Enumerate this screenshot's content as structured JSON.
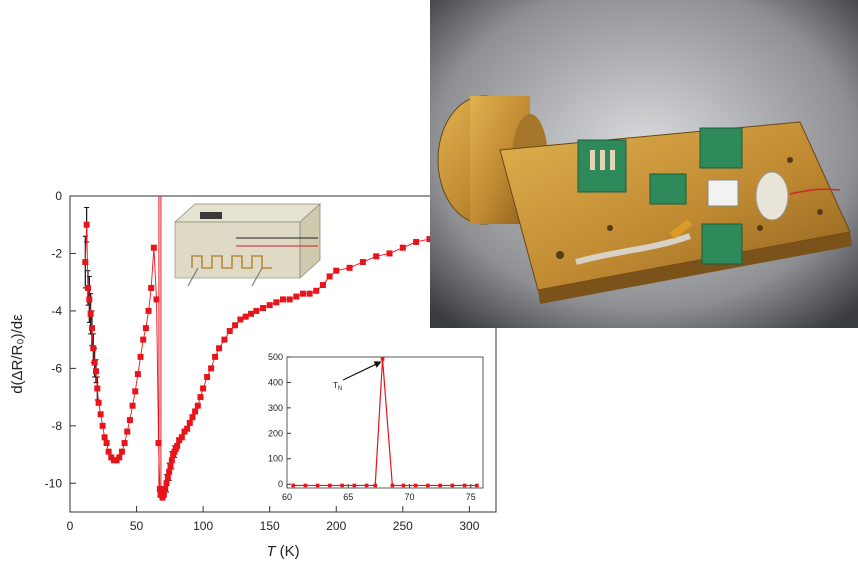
{
  "photo": {
    "description_icon": "experimental-sample-holder-photo"
  },
  "colors": {
    "series": "#e8141c",
    "errorbar": "#111111",
    "brass": "#c8922e",
    "pcb": "#2e8a5a"
  },
  "chart_data": [
    {
      "type": "scatter",
      "xlabel_italic": "T",
      "xlabel_unit": "(K)",
      "ylabel": "d(ΔR/R₀)/dε",
      "xlim": [
        0,
        320
      ],
      "ylim": [
        -11,
        0
      ],
      "xticks": [
        "0",
        "50",
        "100",
        "150",
        "200",
        "250",
        "300"
      ],
      "yticks": [
        "0",
        "-2",
        "-4",
        "-6",
        "-8",
        "-10"
      ],
      "xtick_values": [
        0,
        50,
        100,
        150,
        200,
        250,
        300
      ],
      "ytick_values": [
        0,
        -2,
        -4,
        -6,
        -8,
        -10
      ],
      "grid": false,
      "series": [
        {
          "x": [
            11.5,
            12.5,
            13.5,
            14.5,
            15.5,
            16.5,
            17.5,
            18.5,
            19.5,
            20.5,
            21.5,
            23,
            24.5,
            26,
            27.5,
            29,
            31,
            33,
            35,
            37,
            39,
            41,
            43,
            45,
            47,
            49,
            51,
            53,
            55,
            57,
            59,
            61,
            63,
            65,
            66.5,
            67.5,
            68,
            68.5,
            69.5,
            70.5,
            71.5,
            72.5,
            73.5,
            74.5,
            75.5,
            76.5,
            77.5,
            78.5,
            79.5,
            80.5,
            82,
            84,
            86,
            88,
            90,
            92,
            94,
            96,
            98,
            100,
            103,
            106,
            109,
            112,
            116,
            120,
            124,
            128,
            132,
            136,
            140,
            145,
            150,
            155,
            160,
            165,
            170,
            175,
            180,
            185,
            190,
            195,
            200,
            210,
            220,
            230,
            240,
            250,
            260,
            270,
            280,
            290,
            300,
            310,
            318
          ],
          "y": [
            -2.3,
            -1.0,
            -3.2,
            -3.6,
            -4.1,
            -4.6,
            -5.3,
            -5.8,
            -6.1,
            -6.7,
            -7.2,
            -7.6,
            -8.0,
            -8.4,
            -8.6,
            -8.9,
            -9.1,
            -9.2,
            -9.2,
            -9.1,
            -8.9,
            -8.6,
            -8.2,
            -7.8,
            -7.3,
            -6.8,
            -6.2,
            -5.6,
            -5.0,
            -4.6,
            -4.0,
            -3.2,
            -1.8,
            -3.6,
            -8.6,
            -10.2,
            -10.4,
            -10.4,
            -10.5,
            -10.4,
            -10.2,
            -10.0,
            -9.8,
            -9.6,
            -9.4,
            -9.2,
            -9.0,
            -8.9,
            -8.8,
            -8.7,
            -8.5,
            -8.4,
            -8.2,
            -8.1,
            -7.9,
            -7.7,
            -7.5,
            -7.3,
            -7.0,
            -6.7,
            -6.3,
            -6.0,
            -5.6,
            -5.3,
            -5.0,
            -4.7,
            -4.5,
            -4.3,
            -4.2,
            -4.1,
            -4.0,
            -3.9,
            -3.8,
            -3.7,
            -3.6,
            -3.6,
            -3.5,
            -3.4,
            -3.4,
            -3.3,
            -3.1,
            -2.8,
            -2.6,
            -2.5,
            -2.3,
            -2.1,
            -2.0,
            -1.8,
            -1.6,
            -1.5,
            -1.4,
            -1.2,
            -1.1,
            -0.8,
            -0.6
          ],
          "sharp_peak": {
            "x": 66.8,
            "y_top": 0,
            "y_bottom": -10.4
          }
        }
      ],
      "errorbars": [
        {
          "x": 11.5,
          "y": -2.3,
          "err": 0.9
        },
        {
          "x": 12.5,
          "y": -1.0,
          "err": 0.6
        },
        {
          "x": 13.5,
          "y": -3.2,
          "err": 0.6
        },
        {
          "x": 14.5,
          "y": -3.6,
          "err": 0.8
        },
        {
          "x": 15.5,
          "y": -4.1,
          "err": 0.7
        },
        {
          "x": 16.5,
          "y": -4.6,
          "err": 0.6
        },
        {
          "x": 17.5,
          "y": -5.3,
          "err": 0.5
        },
        {
          "x": 18.5,
          "y": -5.8,
          "err": 0.5
        },
        {
          "x": 19.5,
          "y": -6.1,
          "err": 0.4
        },
        {
          "x": 20.5,
          "y": -6.7,
          "err": 0.4
        },
        {
          "x": 72.5,
          "y": -10.0,
          "err": 0.3
        },
        {
          "x": 74.5,
          "y": -9.6,
          "err": 0.3
        },
        {
          "x": 76.5,
          "y": -9.2,
          "err": 0.3
        },
        {
          "x": 78.5,
          "y": -8.9,
          "err": 0.2
        }
      ]
    },
    {
      "type": "line",
      "xlim": [
        60,
        76
      ],
      "ylim": [
        -15,
        500
      ],
      "xticks": [
        "60",
        "65",
        "70",
        "75"
      ],
      "yticks": [
        "0",
        "100",
        "200",
        "300",
        "400",
        "500"
      ],
      "xtick_values": [
        60,
        65,
        70,
        75
      ],
      "ytick_values": [
        0,
        100,
        200,
        300,
        400,
        500
      ],
      "annotation": "T",
      "annotation_sub": "N",
      "annotation_target": {
        "x": 67.8,
        "y": 492
      },
      "series": [
        {
          "x": [
            60.5,
            61.5,
            62.5,
            63.5,
            64.5,
            65.5,
            66.5,
            67.2,
            67.8,
            68.6,
            69.5,
            70.5,
            71.5,
            72.5,
            73.5,
            74.5,
            75.5
          ],
          "y": [
            -5,
            -5,
            -5,
            -5,
            -5,
            -5,
            -5,
            -5,
            492,
            -5,
            -5,
            -5,
            -5,
            -5,
            -5,
            -5,
            -5
          ]
        }
      ]
    }
  ]
}
